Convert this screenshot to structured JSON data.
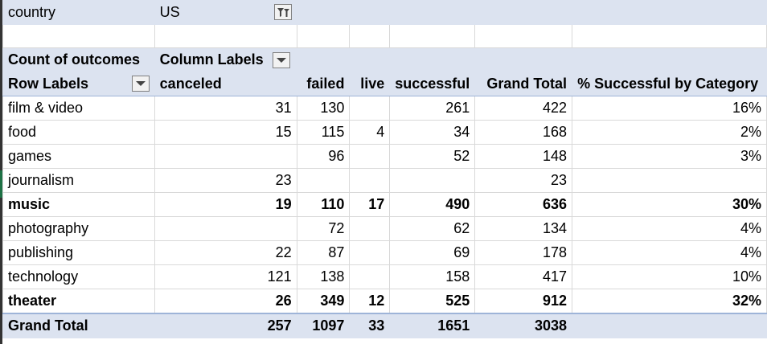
{
  "filter": {
    "field": "country",
    "value": "US"
  },
  "pivot": {
    "value_label": "Count of outcomes",
    "column_labels": "Column Labels",
    "row_labels": "Row Labels",
    "columns": [
      "canceled",
      "failed",
      "live",
      "successful",
      "Grand Total",
      "% Successful by Category"
    ],
    "rows": [
      {
        "category": "film & video",
        "canceled": "31",
        "failed": "130",
        "live": "",
        "successful": "261",
        "grand_total": "422",
        "pct": "16%"
      },
      {
        "category": "food",
        "canceled": "15",
        "failed": "115",
        "live": "4",
        "successful": "34",
        "grand_total": "168",
        "pct": "2%"
      },
      {
        "category": "games",
        "canceled": "",
        "failed": "96",
        "live": "",
        "successful": "52",
        "grand_total": "148",
        "pct": "3%"
      },
      {
        "category": "journalism",
        "canceled": "23",
        "failed": "",
        "live": "",
        "successful": "",
        "grand_total": "23",
        "pct": ""
      },
      {
        "category": "music",
        "canceled": "19",
        "failed": "110",
        "live": "17",
        "successful": "490",
        "grand_total": "636",
        "pct": "30%"
      },
      {
        "category": "photography",
        "canceled": "",
        "failed": "72",
        "live": "",
        "successful": "62",
        "grand_total": "134",
        "pct": "4%"
      },
      {
        "category": "publishing",
        "canceled": "22",
        "failed": "87",
        "live": "",
        "successful": "69",
        "grand_total": "178",
        "pct": "4%"
      },
      {
        "category": "technology",
        "canceled": "121",
        "failed": "138",
        "live": "",
        "successful": "158",
        "grand_total": "417",
        "pct": "10%"
      },
      {
        "category": "theater",
        "canceled": "26",
        "failed": "349",
        "live": "12",
        "successful": "525",
        "grand_total": "912",
        "pct": "32%"
      }
    ],
    "bold_rows": [
      "music",
      "theater"
    ],
    "grand_total": {
      "label": "Grand Total",
      "canceled": "257",
      "failed": "1097",
      "live": "33",
      "successful": "1651",
      "grand_total": "3038",
      "pct": ""
    }
  },
  "colors": {
    "pivot_header_fill": "#dce3f0",
    "pivot_border": "#9eb4d8",
    "gridline": "#d9d9d9"
  }
}
